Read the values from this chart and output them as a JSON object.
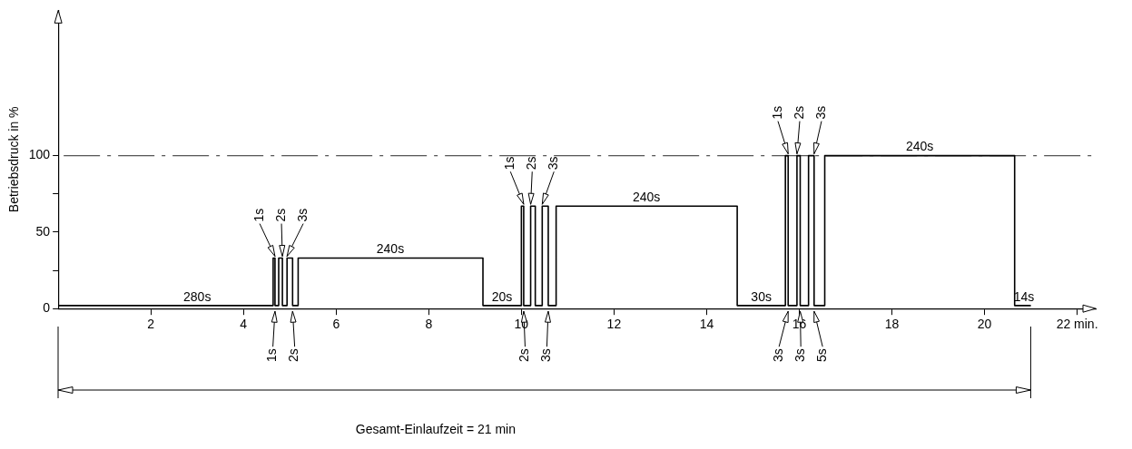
{
  "chart_data": {
    "type": "line",
    "ylabel": "Betriebsdruck in %",
    "xlim": [
      0,
      22.4
    ],
    "ylim": [
      0,
      195
    ],
    "xticks": [
      2,
      4,
      6,
      8,
      10,
      12,
      14,
      16,
      18,
      20,
      {
        "value": 22,
        "label": "22 min."
      }
    ],
    "yticks": [
      0,
      {
        "value": 25,
        "label": null
      },
      50,
      {
        "value": 75,
        "label": null
      },
      100
    ],
    "grid": false,
    "legend": false,
    "marker": "none",
    "line_style": "solid",
    "series": [
      {
        "color": "#000000",
        "x": [
          0,
          4.64,
          4.64,
          4.68,
          4.68,
          4.76,
          4.76,
          4.84,
          4.84,
          4.94,
          4.94,
          5.06,
          5.06,
          5.18,
          5.18,
          9.17,
          9.17,
          10.0,
          10.0,
          10.05,
          10.05,
          10.2,
          10.2,
          10.3,
          10.3,
          10.45,
          10.45,
          10.58,
          10.58,
          10.75,
          10.75,
          14.66,
          14.66,
          15.7,
          15.7,
          15.76,
          15.76,
          15.95,
          15.95,
          16.02,
          16.02,
          16.2,
          16.2,
          16.32,
          16.32,
          16.55,
          16.55,
          20.65,
          20.65,
          21.0
        ],
        "values": [
          2,
          2,
          33,
          33,
          2,
          2,
          33,
          33,
          2,
          2,
          33,
          33,
          2,
          2,
          33,
          33,
          2,
          2,
          67,
          67,
          2,
          2,
          67,
          67,
          2,
          2,
          67,
          67,
          2,
          2,
          67,
          67,
          2,
          2,
          100,
          100,
          2,
          2,
          100,
          100,
          2,
          2,
          100,
          100,
          2,
          2,
          100,
          100,
          2,
          2
        ]
      }
    ],
    "ref_lines": [
      {
        "axis": "y",
        "value": 100,
        "color": "#555555",
        "line_style": "dashed"
      }
    ],
    "annotations": [
      "Gesamt-Einlaufzeit = 21 min",
      {
        "text": "280s",
        "x": 3,
        "y": 2
      },
      {
        "text": "1s",
        "x": 4.68,
        "y": 33
      },
      {
        "text": "2s",
        "x": 4.84,
        "y": 33
      },
      {
        "text": "3s",
        "x": 4.94,
        "y": 33
      },
      {
        "text": "1s",
        "x": 4.68,
        "y": 2
      },
      {
        "text": "2s",
        "x": 5.06,
        "y": 2
      },
      {
        "text": "240s",
        "x": 7.17,
        "y": 33
      },
      {
        "text": "20s",
        "x": 9.58,
        "y": 2
      },
      {
        "text": "1s",
        "x": 10.05,
        "y": 67
      },
      {
        "text": "2s",
        "x": 10.2,
        "y": 67
      },
      {
        "text": "3s",
        "x": 10.45,
        "y": 67
      },
      {
        "text": "2s",
        "x": 10.05,
        "y": 2
      },
      {
        "text": "3s",
        "x": 10.58,
        "y": 2
      },
      {
        "text": "240s",
        "x": 12.7,
        "y": 67
      },
      {
        "text": "30s",
        "x": 15.18,
        "y": 2
      },
      {
        "text": "1s",
        "x": 15.76,
        "y": 100
      },
      {
        "text": "2s",
        "x": 15.95,
        "y": 100
      },
      {
        "text": "3s",
        "x": 16.32,
        "y": 100
      },
      {
        "text": "3s",
        "x": 15.76,
        "y": 2
      },
      {
        "text": "3s",
        "x": 16.02,
        "y": 2
      },
      {
        "text": "5s",
        "x": 16.32,
        "y": 2
      },
      {
        "text": "240s",
        "x": 18.6,
        "y": 100
      },
      {
        "text": "14s",
        "x": 20.85,
        "y": 2
      }
    ]
  }
}
